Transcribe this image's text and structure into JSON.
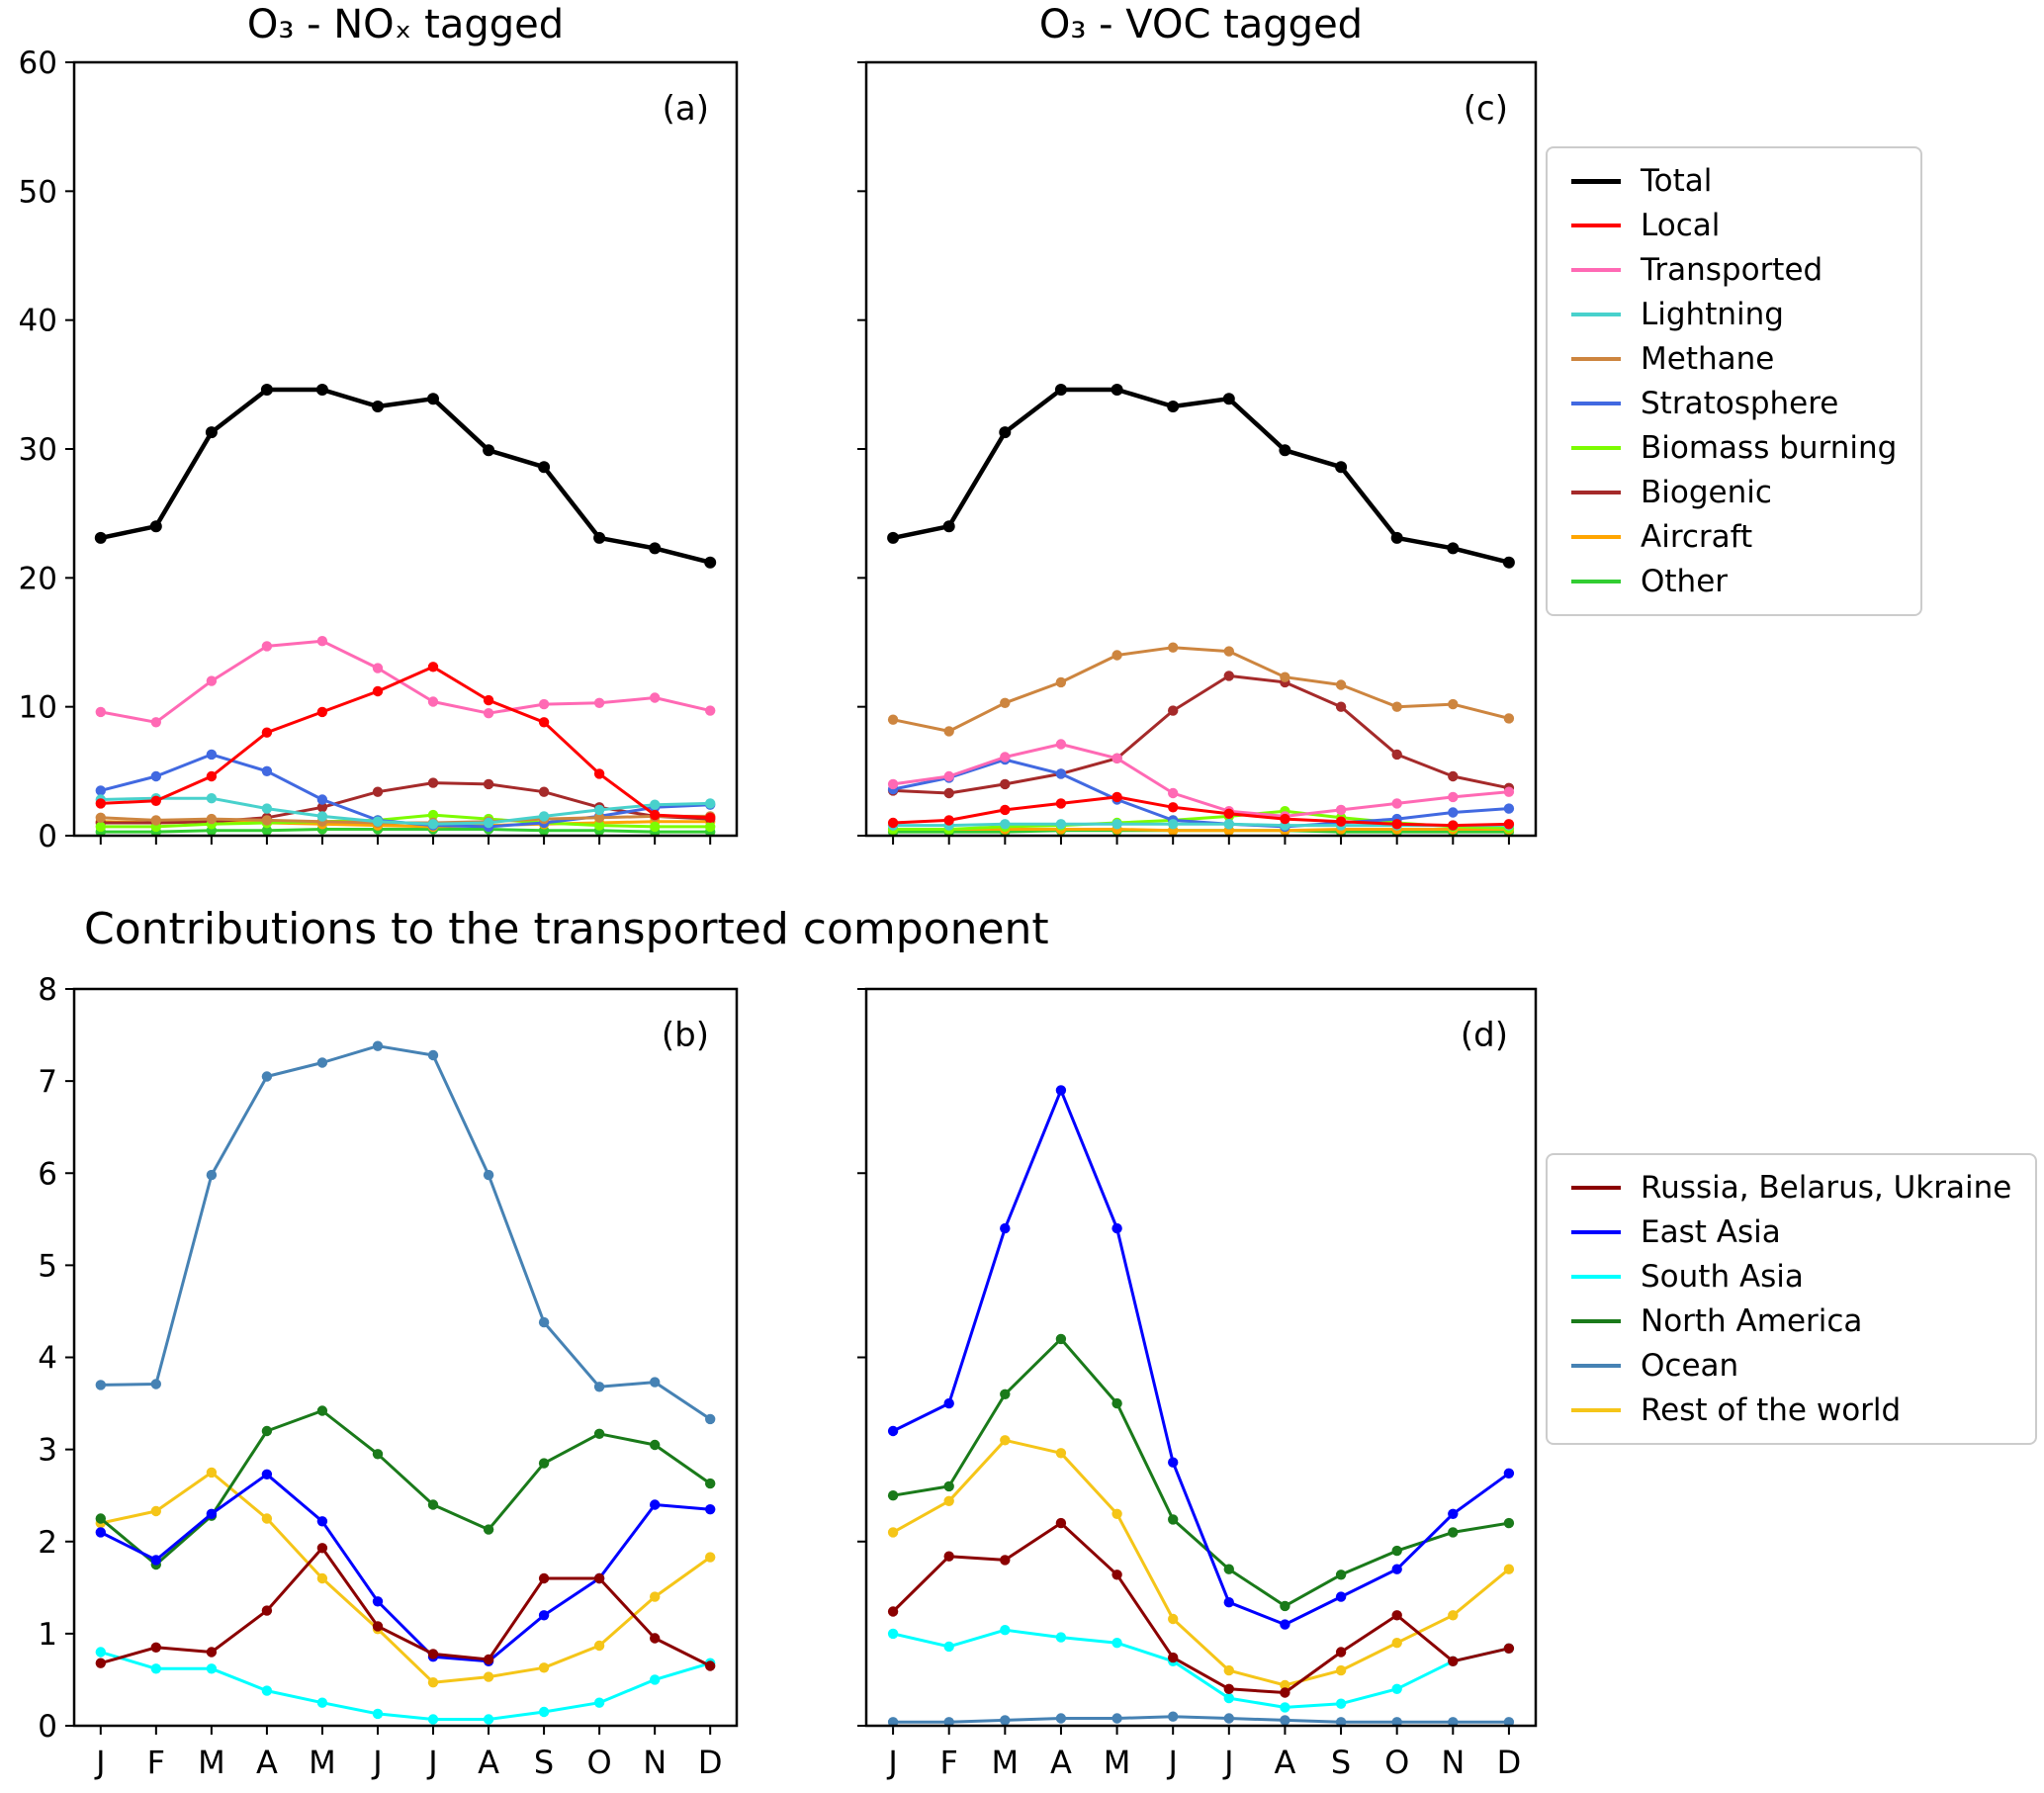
{
  "titles": {
    "panel_a": "O₃ - NOₓ tagged",
    "panel_c": "O₃ - VOC tagged",
    "section": "Contributions to the transported component"
  },
  "legends": {
    "top": [
      {
        "label": "Total",
        "color": "#000000",
        "lw": 5
      },
      {
        "label": "Local",
        "color": "#ff0000"
      },
      {
        "label": "Transported",
        "color": "#ff69b4"
      },
      {
        "label": "Lightning",
        "color": "#48d1cc"
      },
      {
        "label": "Methane",
        "color": "#cd853f"
      },
      {
        "label": "Stratosphere",
        "color": "#4169e1"
      },
      {
        "label": "Biomass burning",
        "color": "#7cfc00"
      },
      {
        "label": "Biogenic",
        "color": "#a52a2a"
      },
      {
        "label": "Aircraft",
        "color": "#ffa500"
      },
      {
        "label": "Other",
        "color": "#32cd32"
      }
    ],
    "bottom": [
      {
        "label": "Russia, Belarus, Ukraine",
        "color": "#8b0000"
      },
      {
        "label": "East Asia",
        "color": "#0000ff"
      },
      {
        "label": "South Asia",
        "color": "#00ffff"
      },
      {
        "label": "North America",
        "color": "#1a7a1a"
      },
      {
        "label": "Ocean",
        "color": "#4682b4"
      },
      {
        "label": "Rest of the world",
        "color": "#f5c518"
      }
    ]
  },
  "chart_data": [
    {
      "id": "a",
      "type": "line",
      "title": "O₃ - NOₓ tagged",
      "panel_label": "(a)",
      "x": [
        "J",
        "F",
        "M",
        "A",
        "M",
        "J",
        "J",
        "A",
        "S",
        "O",
        "N",
        "D"
      ],
      "ylim": [
        0,
        60
      ],
      "yticks": [
        0,
        10,
        20,
        30,
        40,
        50,
        60
      ],
      "show_y_labels": true,
      "show_x_labels": false,
      "grid": false,
      "series": [
        {
          "name": "Total",
          "color": "#000000",
          "lw": 4.5,
          "values": [
            23.1,
            24.0,
            31.3,
            34.6,
            34.6,
            33.3,
            33.9,
            29.9,
            28.6,
            23.1,
            22.3,
            21.2
          ]
        },
        {
          "name": "Local",
          "color": "#ff0000",
          "values": [
            2.5,
            2.7,
            4.6,
            8.0,
            9.6,
            11.2,
            13.1,
            10.5,
            8.8,
            4.8,
            1.6,
            1.4
          ]
        },
        {
          "name": "Transported",
          "color": "#ff69b4",
          "values": [
            9.6,
            8.8,
            12.0,
            14.7,
            15.1,
            13.0,
            10.4,
            9.5,
            10.2,
            10.3,
            10.7,
            9.7
          ]
        },
        {
          "name": "Lightning",
          "color": "#48d1cc",
          "values": [
            2.8,
            2.9,
            2.9,
            2.1,
            1.5,
            1.1,
            0.9,
            1.0,
            1.5,
            2.0,
            2.4,
            2.5
          ]
        },
        {
          "name": "Methane",
          "color": "#cd853f",
          "values": [
            1.4,
            1.2,
            1.3,
            1.2,
            1.1,
            1.0,
            1.0,
            1.1,
            1.3,
            1.4,
            1.5,
            1.5
          ]
        },
        {
          "name": "Stratosphere",
          "color": "#4169e1",
          "values": [
            3.5,
            4.6,
            6.3,
            5.0,
            2.8,
            1.2,
            0.8,
            0.7,
            1.0,
            1.5,
            2.2,
            2.4
          ]
        },
        {
          "name": "Biomass burning",
          "color": "#7cfc00",
          "values": [
            0.7,
            0.7,
            0.9,
            1.0,
            1.1,
            1.2,
            1.6,
            1.3,
            1.0,
            0.8,
            0.7,
            0.7
          ]
        },
        {
          "name": "Biogenic",
          "color": "#a52a2a",
          "values": [
            1.0,
            1.0,
            1.1,
            1.4,
            2.2,
            3.4,
            4.1,
            4.0,
            3.4,
            2.2,
            1.5,
            1.3
          ]
        },
        {
          "name": "Aircraft",
          "color": "#ffa500",
          "values": [
            1.1,
            1.0,
            1.1,
            1.0,
            0.9,
            0.8,
            0.7,
            0.8,
            0.9,
            1.0,
            1.1,
            1.1
          ]
        },
        {
          "name": "Other",
          "color": "#32cd32",
          "values": [
            0.3,
            0.3,
            0.4,
            0.4,
            0.5,
            0.5,
            0.5,
            0.5,
            0.4,
            0.4,
            0.3,
            0.3
          ]
        }
      ]
    },
    {
      "id": "c",
      "type": "line",
      "title": "O₃ - VOC tagged",
      "panel_label": "(c)",
      "x": [
        "J",
        "F",
        "M",
        "A",
        "M",
        "J",
        "J",
        "A",
        "S",
        "O",
        "N",
        "D"
      ],
      "ylim": [
        0,
        60
      ],
      "yticks": [
        0,
        10,
        20,
        30,
        40,
        50,
        60
      ],
      "show_y_labels": false,
      "show_x_labels": false,
      "grid": false,
      "series": [
        {
          "name": "Total",
          "color": "#000000",
          "lw": 4.5,
          "values": [
            23.1,
            24.0,
            31.3,
            34.6,
            34.6,
            33.3,
            33.9,
            29.9,
            28.6,
            23.1,
            22.3,
            21.2
          ]
        },
        {
          "name": "Local",
          "color": "#ff0000",
          "values": [
            1.0,
            1.2,
            2.0,
            2.5,
            3.0,
            2.2,
            1.7,
            1.3,
            1.1,
            0.9,
            0.8,
            0.9
          ]
        },
        {
          "name": "Transported",
          "color": "#ff69b4",
          "values": [
            4.0,
            4.6,
            6.1,
            7.1,
            6.0,
            3.3,
            1.9,
            1.5,
            2.0,
            2.5,
            3.0,
            3.4
          ]
        },
        {
          "name": "Lightning",
          "color": "#48d1cc",
          "values": [
            0.8,
            0.8,
            0.9,
            0.9,
            0.9,
            0.9,
            0.9,
            0.8,
            0.8,
            0.8,
            0.8,
            0.8
          ]
        },
        {
          "name": "Methane",
          "color": "#cd853f",
          "values": [
            9.0,
            8.1,
            10.3,
            11.9,
            14.0,
            14.6,
            14.3,
            12.3,
            11.7,
            10.0,
            10.2,
            9.1
          ]
        },
        {
          "name": "Stratosphere",
          "color": "#4169e1",
          "values": [
            3.6,
            4.5,
            5.9,
            4.8,
            2.8,
            1.2,
            0.9,
            0.7,
            1.0,
            1.3,
            1.8,
            2.1
          ]
        },
        {
          "name": "Biomass burning",
          "color": "#7cfc00",
          "values": [
            0.5,
            0.5,
            0.7,
            0.8,
            1.0,
            1.2,
            1.5,
            1.9,
            1.4,
            1.0,
            0.7,
            0.6
          ]
        },
        {
          "name": "Biogenic",
          "color": "#a52a2a",
          "values": [
            3.5,
            3.3,
            4.0,
            4.8,
            6.0,
            9.7,
            12.4,
            11.9,
            10.0,
            6.3,
            4.6,
            3.7
          ]
        },
        {
          "name": "Aircraft",
          "color": "#ffa500",
          "values": [
            0.5,
            0.5,
            0.5,
            0.5,
            0.5,
            0.4,
            0.4,
            0.4,
            0.5,
            0.5,
            0.5,
            0.5
          ]
        },
        {
          "name": "Other",
          "color": "#32cd32",
          "values": [
            0.3,
            0.3,
            0.3,
            0.4,
            0.4,
            0.4,
            0.4,
            0.4,
            0.3,
            0.3,
            0.3,
            0.3
          ]
        }
      ]
    },
    {
      "id": "b",
      "type": "line",
      "title": "Contributions to the transported component (NOx tagged)",
      "panel_label": "(b)",
      "x": [
        "J",
        "F",
        "M",
        "A",
        "M",
        "J",
        "J",
        "A",
        "S",
        "O",
        "N",
        "D"
      ],
      "ylim": [
        0,
        8
      ],
      "yticks": [
        0,
        1,
        2,
        3,
        4,
        5,
        6,
        7,
        8
      ],
      "show_y_labels": true,
      "show_x_labels": true,
      "grid": false,
      "series": [
        {
          "name": "Russia, Belarus, Ukraine",
          "color": "#8b0000",
          "values": [
            0.68,
            0.85,
            0.8,
            1.25,
            1.93,
            1.08,
            0.78,
            0.72,
            1.6,
            1.6,
            0.95,
            0.65
          ]
        },
        {
          "name": "East Asia",
          "color": "#0000ff",
          "values": [
            2.1,
            1.8,
            2.3,
            2.73,
            2.22,
            1.35,
            0.75,
            0.7,
            1.2,
            1.6,
            2.4,
            2.35
          ]
        },
        {
          "name": "South Asia",
          "color": "#00ffff",
          "values": [
            0.8,
            0.62,
            0.62,
            0.38,
            0.25,
            0.13,
            0.07,
            0.07,
            0.15,
            0.25,
            0.5,
            0.68
          ]
        },
        {
          "name": "North America",
          "color": "#1a7a1a",
          "values": [
            2.25,
            1.75,
            2.28,
            3.2,
            3.42,
            2.95,
            2.4,
            2.13,
            2.85,
            3.17,
            3.05,
            2.63
          ]
        },
        {
          "name": "Ocean",
          "color": "#4682b4",
          "values": [
            3.7,
            3.71,
            5.98,
            7.05,
            7.2,
            7.38,
            7.28,
            5.98,
            4.38,
            3.68,
            3.73,
            3.33
          ]
        },
        {
          "name": "Rest of the world",
          "color": "#f5c518",
          "values": [
            2.2,
            2.33,
            2.75,
            2.25,
            1.6,
            1.05,
            0.47,
            0.53,
            0.63,
            0.87,
            1.4,
            1.83
          ]
        }
      ]
    },
    {
      "id": "d",
      "type": "line",
      "title": "Contributions to the transported component (VOC tagged)",
      "panel_label": "(d)",
      "x": [
        "J",
        "F",
        "M",
        "A",
        "M",
        "J",
        "J",
        "A",
        "S",
        "O",
        "N",
        "D"
      ],
      "ylim": [
        0,
        4
      ],
      "yticks": [
        0,
        1,
        2,
        3,
        4
      ],
      "show_y_labels": false,
      "show_x_labels": true,
      "grid": false,
      "series": [
        {
          "name": "Russia, Belarus, Ukraine",
          "color": "#8b0000",
          "values": [
            0.62,
            0.92,
            0.9,
            1.1,
            0.82,
            0.37,
            0.2,
            0.18,
            0.4,
            0.6,
            0.35,
            0.42
          ]
        },
        {
          "name": "East Asia",
          "color": "#0000ff",
          "values": [
            1.6,
            1.75,
            2.7,
            3.45,
            2.7,
            1.43,
            0.67,
            0.55,
            0.7,
            0.85,
            1.15,
            1.37
          ]
        },
        {
          "name": "South Asia",
          "color": "#00ffff",
          "values": [
            0.5,
            0.43,
            0.52,
            0.48,
            0.45,
            0.35,
            0.15,
            0.1,
            0.12,
            0.2,
            0.35,
            0.42
          ]
        },
        {
          "name": "North America",
          "color": "#1a7a1a",
          "values": [
            1.25,
            1.3,
            1.8,
            2.1,
            1.75,
            1.12,
            0.85,
            0.65,
            0.82,
            0.95,
            1.05,
            1.1
          ]
        },
        {
          "name": "Ocean",
          "color": "#4682b4",
          "values": [
            0.02,
            0.02,
            0.03,
            0.04,
            0.04,
            0.05,
            0.04,
            0.03,
            0.02,
            0.02,
            0.02,
            0.02
          ]
        },
        {
          "name": "Rest of the world",
          "color": "#f5c518",
          "values": [
            1.05,
            1.22,
            1.55,
            1.48,
            1.15,
            0.58,
            0.3,
            0.22,
            0.3,
            0.45,
            0.6,
            0.85
          ]
        }
      ]
    }
  ]
}
